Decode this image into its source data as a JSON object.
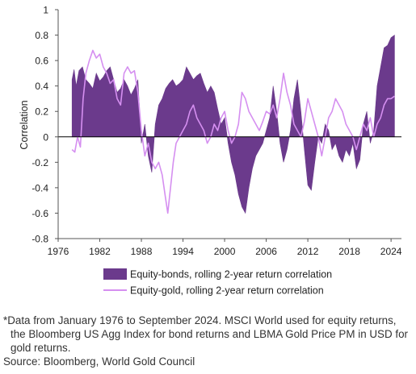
{
  "footnote": {
    "line1": "*Data from January 1976 to September 2024. MSCI World used for equity returns,",
    "line2": "the Bloomberg US Agg Index for bond returns and LBMA Gold Price PM in USD for",
    "line3": "gold returns."
  },
  "source": "Source: Bloomberg, World Gold Council",
  "chart_data": {
    "type": "area",
    "title": "",
    "xlabel": "",
    "ylabel": "Correlation",
    "xlim": [
      1976,
      2025.5
    ],
    "ylim": [
      -0.8,
      1
    ],
    "yticks": [
      -0.8,
      -0.6,
      -0.4,
      -0.2,
      0,
      0.2,
      0.4,
      0.6,
      0.8,
      1
    ],
    "ytick_labels": [
      "-0.8",
      "-0.6",
      "-0.4",
      "-0.2",
      "0",
      "0.2",
      "0.4",
      "0.6",
      "0.8",
      "1"
    ],
    "xticks": [
      1976,
      1982,
      1988,
      1994,
      2000,
      2006,
      2012,
      2018,
      2024
    ],
    "xtick_labels": [
      "1976",
      "1982",
      "1988",
      "1994",
      "2000",
      "2006",
      "2012",
      "2018",
      "2024"
    ],
    "grid": false,
    "legend_position": "bottom",
    "colors": {
      "equity_bonds": "#6b3a8c",
      "equity_gold": "#d58ff0",
      "axis": "#555555"
    },
    "series": [
      {
        "name": "Equity-bonds, rolling 2-year return correlation",
        "kind": "area",
        "x": [
          1978.0,
          1978.3,
          1978.6,
          1979.0,
          1979.5,
          1980.0,
          1980.5,
          1981.0,
          1981.5,
          1982.0,
          1982.5,
          1983.0,
          1983.5,
          1984.0,
          1984.5,
          1985.0,
          1985.5,
          1986.0,
          1986.5,
          1987.0,
          1987.5,
          1988.0,
          1988.5,
          1989.0,
          1989.5,
          1990.0,
          1990.5,
          1991.0,
          1991.5,
          1992.0,
          1992.5,
          1993.0,
          1993.5,
          1994.0,
          1994.5,
          1995.0,
          1995.5,
          1996.0,
          1996.5,
          1997.0,
          1997.5,
          1998.0,
          1998.5,
          1999.0,
          1999.5,
          2000.0,
          2000.5,
          2001.0,
          2001.5,
          2002.0,
          2002.5,
          2003.0,
          2003.5,
          2004.0,
          2004.5,
          2005.0,
          2005.5,
          2006.0,
          2006.5,
          2007.0,
          2007.5,
          2008.0,
          2008.5,
          2009.0,
          2009.5,
          2010.0,
          2010.5,
          2011.0,
          2011.5,
          2012.0,
          2012.5,
          2013.0,
          2013.5,
          2014.0,
          2014.5,
          2015.0,
          2015.5,
          2016.0,
          2016.5,
          2017.0,
          2017.5,
          2018.0,
          2018.5,
          2019.0,
          2019.5,
          2020.0,
          2020.5,
          2021.0,
          2021.5,
          2022.0,
          2022.5,
          2023.0,
          2023.5,
          2024.0,
          2024.5
        ],
        "values": [
          0.45,
          0.53,
          0.4,
          0.52,
          0.55,
          0.45,
          0.42,
          0.38,
          0.5,
          0.44,
          0.47,
          0.52,
          0.55,
          0.45,
          0.35,
          0.38,
          0.45,
          0.4,
          0.33,
          0.38,
          0.45,
          -0.05,
          0.1,
          -0.15,
          -0.28,
          0.1,
          0.25,
          0.3,
          0.38,
          0.42,
          0.45,
          0.4,
          0.42,
          0.45,
          0.55,
          0.5,
          0.45,
          0.48,
          0.5,
          0.42,
          0.35,
          0.4,
          0.35,
          0.22,
          0.1,
          0.15,
          -0.05,
          -0.2,
          -0.3,
          -0.45,
          -0.55,
          -0.6,
          -0.4,
          -0.25,
          -0.15,
          -0.1,
          -0.05,
          0.05,
          0.15,
          0.4,
          0.2,
          -0.05,
          -0.2,
          -0.1,
          0.05,
          0.3,
          0.45,
          0.2,
          -0.1,
          -0.38,
          -0.42,
          -0.2,
          0.0,
          -0.05,
          0.1,
          0.05,
          -0.1,
          -0.05,
          -0.15,
          -0.2,
          -0.1,
          -0.15,
          -0.05,
          -0.25,
          -0.18,
          0.1,
          0.2,
          -0.05,
          0.05,
          0.4,
          0.55,
          0.7,
          0.72,
          0.78,
          0.8
        ]
      },
      {
        "name": "Equity-gold, rolling 2-year return correlation",
        "kind": "line",
        "x": [
          1978.0,
          1978.4,
          1978.8,
          1979.2,
          1979.6,
          1980.0,
          1980.5,
          1981.0,
          1981.5,
          1982.0,
          1982.5,
          1983.0,
          1983.5,
          1984.0,
          1984.5,
          1985.0,
          1985.5,
          1986.0,
          1986.5,
          1987.0,
          1987.5,
          1988.0,
          1988.5,
          1989.0,
          1989.5,
          1990.0,
          1990.5,
          1991.0,
          1991.4,
          1991.8,
          1992.2,
          1992.6,
          1993.0,
          1993.5,
          1994.0,
          1994.5,
          1995.0,
          1995.5,
          1996.0,
          1996.5,
          1997.0,
          1997.5,
          1998.0,
          1998.5,
          1999.0,
          1999.5,
          2000.0,
          2000.5,
          2001.0,
          2001.5,
          2002.0,
          2002.5,
          2003.0,
          2003.5,
          2004.0,
          2004.5,
          2005.0,
          2005.5,
          2006.0,
          2006.5,
          2007.0,
          2007.5,
          2008.0,
          2008.5,
          2009.0,
          2009.5,
          2010.0,
          2010.5,
          2011.0,
          2011.5,
          2012.0,
          2012.5,
          2013.0,
          2013.5,
          2014.0,
          2014.5,
          2015.0,
          2015.5,
          2016.0,
          2016.5,
          2017.0,
          2017.5,
          2018.0,
          2018.5,
          2019.0,
          2019.5,
          2020.0,
          2020.5,
          2021.0,
          2021.5,
          2022.0,
          2022.5,
          2023.0,
          2023.5,
          2024.0,
          2024.5
        ],
        "values": [
          -0.1,
          -0.12,
          0.0,
          -0.08,
          0.3,
          0.5,
          0.6,
          0.68,
          0.62,
          0.65,
          0.55,
          0.5,
          0.42,
          0.45,
          0.3,
          0.25,
          0.5,
          0.55,
          0.5,
          0.52,
          0.35,
          0.05,
          -0.15,
          -0.05,
          -0.2,
          -0.25,
          -0.2,
          -0.3,
          -0.45,
          -0.6,
          -0.4,
          -0.2,
          -0.05,
          0.0,
          0.05,
          0.1,
          0.2,
          0.25,
          0.15,
          0.1,
          0.05,
          -0.05,
          0.0,
          0.1,
          0.05,
          0.15,
          0.2,
          0.05,
          -0.05,
          0.0,
          0.1,
          0.35,
          0.3,
          0.2,
          0.15,
          0.1,
          0.05,
          0.12,
          0.2,
          0.18,
          0.25,
          0.15,
          0.3,
          0.5,
          0.35,
          0.25,
          0.1,
          0.05,
          0.0,
          0.12,
          0.3,
          0.2,
          0.1,
          0.0,
          -0.15,
          0.0,
          0.15,
          0.2,
          0.3,
          0.25,
          0.2,
          0.1,
          0.05,
          0.0,
          -0.1,
          0.0,
          0.1,
          0.05,
          0.15,
          0.0,
          0.1,
          0.15,
          0.25,
          0.3,
          0.3,
          0.32
        ]
      }
    ]
  }
}
